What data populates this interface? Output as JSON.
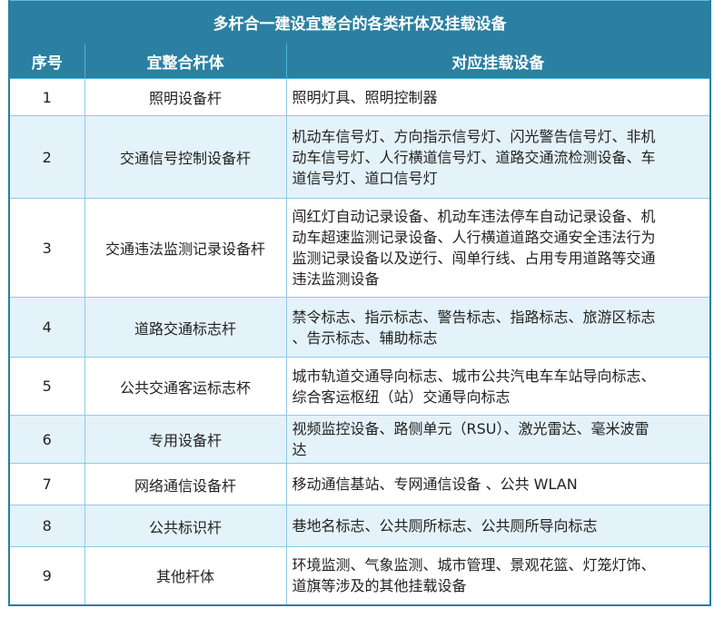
{
  "title": "多杆合一建设宜整合的各类杆体及挂载设备",
  "headers": [
    "序号",
    "宜整合杆体",
    "对应挂载设备"
  ],
  "rows": [
    {
      "no": "1",
      "pole": "照明设备杆",
      "lines": [
        "照明灯具、照明控制器"
      ]
    },
    {
      "no": "2",
      "pole": "交通信号控制设备杆",
      "lines": [
        "机动车信号灯、方向指示信号灯、闪光警告信号灯、非机",
        "动车信号灯、人行横道信号灯、道路交通流检测设备、车",
        "道信号灯、道口信号灯"
      ]
    },
    {
      "no": "3",
      "pole": "交通违法监测记录设备杆",
      "lines": [
        "闯红灯自动记录设备、机动车违法停车自动记录设备、机",
        "动车超速监测记录设备、人行横道道路交通安全违法行为",
        "监测记录设备以及逆行、闯单行线、占用专用道路等交通",
        "违法监测设备"
      ]
    },
    {
      "no": "4",
      "pole": "道路交通标志杆",
      "lines": [
        "禁令标志、指示标志、警告标志、指路标志、旅游区标志",
        "、告示标志、辅助标志"
      ]
    },
    {
      "no": "5",
      "pole": "公共交通客运标志杯",
      "lines": [
        "城市轨道交通导向标志、城市公共汽电车车站导向标志、",
        "综合客运枢纽（站）交通导向标志"
      ]
    },
    {
      "no": "6",
      "pole": "专用设备杆",
      "lines": [
        "视频监控设备、路侧单元（RSU）、激光雷达、毫米波雷",
        "达"
      ]
    },
    {
      "no": "7",
      "pole": "网络通信设备杆",
      "lines": [
        "移动通信基站、专网通信设备 、公共 WLAN"
      ]
    },
    {
      "no": "8",
      "pole": "公共标识杆",
      "lines": [
        "巷地名标志、公共厕所标志、公共厕所导向标志"
      ]
    },
    {
      "no": "9",
      "pole": "其他杆体",
      "lines": [
        "环境监测、气象监测、城市管理、景观花篮、灯笼灯饰、",
        "道旗等涉及的其他挂载设备"
      ]
    }
  ]
}
